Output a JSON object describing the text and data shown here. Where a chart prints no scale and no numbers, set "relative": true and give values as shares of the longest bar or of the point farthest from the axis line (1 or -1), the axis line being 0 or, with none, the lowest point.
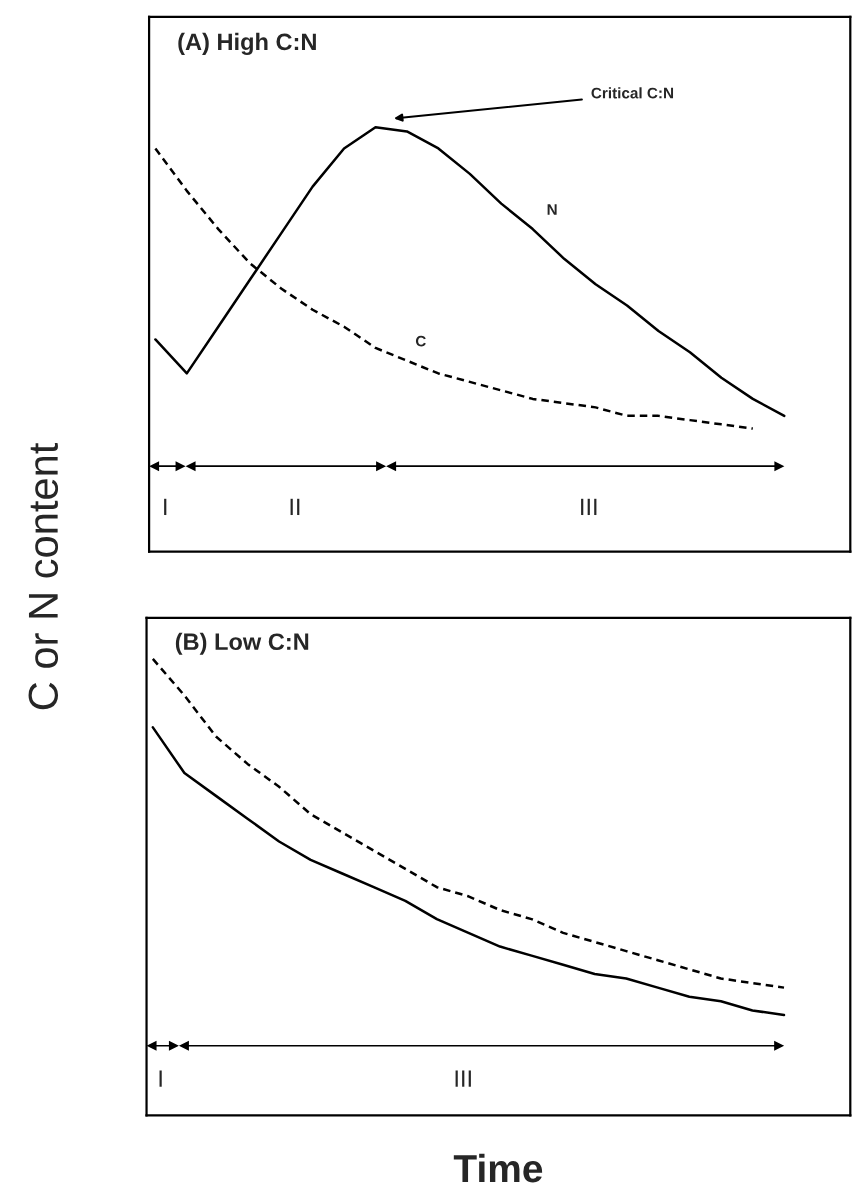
{
  "chart_data": [
    {
      "type": "line",
      "title": "(A) High C:N",
      "ylabel": "C or N content",
      "relative": true,
      "legend": false,
      "categories": [
        null,
        null,
        null,
        null,
        null,
        null,
        null,
        null,
        null,
        null,
        null,
        null,
        null,
        null,
        null,
        null,
        null,
        null,
        null,
        null,
        null
      ],
      "series": [
        {
          "name": "N",
          "color": "#000000",
          "line_style": "solid",
          "values": [
            0.5,
            0.42,
            0.53,
            0.64,
            0.75,
            0.86,
            0.95,
            1.0,
            0.99,
            0.95,
            0.89,
            0.82,
            0.76,
            0.69,
            0.63,
            0.58,
            0.52,
            0.47,
            0.41,
            0.36,
            0.32
          ]
        },
        {
          "name": "C",
          "color": "#000000",
          "line_style": "dashed",
          "values": [
            0.95,
            0.85,
            0.76,
            0.68,
            0.62,
            0.57,
            0.53,
            0.48,
            0.45,
            0.42,
            0.4,
            0.38,
            0.36,
            0.35,
            0.34,
            0.32,
            0.32,
            0.31,
            0.3,
            0.29,
            null
          ]
        }
      ],
      "annotations": [
        "Critical C:N",
        "I",
        "II",
        "III"
      ]
    },
    {
      "type": "line",
      "title": "(B) Low C:N",
      "xlabel": "Time",
      "relative": true,
      "legend": false,
      "categories": [
        null,
        null,
        null,
        null,
        null,
        null,
        null,
        null,
        null,
        null,
        null,
        null,
        null,
        null,
        null,
        null,
        null,
        null,
        null,
        null,
        null
      ],
      "series": [
        {
          "color": "#000000",
          "line_style": "dashed",
          "values": [
            1.0,
            0.92,
            0.83,
            0.77,
            0.72,
            0.66,
            0.62,
            0.58,
            0.54,
            0.5,
            0.48,
            0.45,
            0.43,
            0.4,
            0.38,
            0.36,
            0.34,
            0.32,
            0.3,
            0.29,
            0.28
          ]
        },
        {
          "color": "#000000",
          "line_style": "solid",
          "values": [
            0.85,
            0.75,
            0.7,
            0.65,
            0.6,
            0.56,
            0.53,
            0.5,
            0.47,
            0.43,
            0.4,
            0.37,
            0.35,
            0.33,
            0.31,
            0.3,
            0.28,
            0.26,
            0.25,
            0.23,
            0.22
          ]
        }
      ],
      "annotations": [
        "I",
        "III"
      ]
    }
  ]
}
